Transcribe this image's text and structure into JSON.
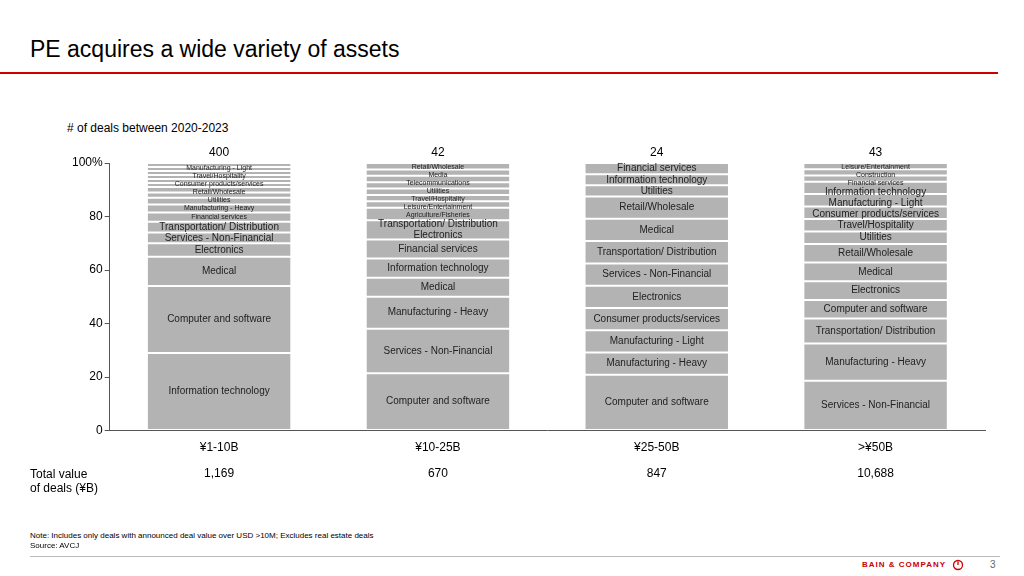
{
  "chart_data": {
    "type": "bar",
    "title": "PE acquires a wide variety of assets",
    "y_label": "# of deals between 2020-2023",
    "stacked": true,
    "grid": false,
    "color": "#b3b3b3",
    "ylim": [
      0,
      100
    ],
    "yticks": [
      0,
      20,
      40,
      60,
      80,
      {
        "value": 100,
        "label": "100%"
      }
    ],
    "categories": [
      "¥1-10B",
      "¥10-25B",
      "¥25-50B",
      ">¥50B"
    ],
    "deal_counts": [
      400,
      42,
      24,
      43
    ],
    "total_value_label": "Total value\nof deals (¥B)",
    "total_values": [
      {
        "value": 1169,
        "label": "1,169"
      },
      {
        "value": 670,
        "label": "670"
      },
      {
        "value": 847,
        "label": "847"
      },
      {
        "value": 10688,
        "label": "10,688"
      }
    ],
    "segments": [
      [
        {
          "name": "Information technology",
          "value": 29
        },
        {
          "name": "Computer and software",
          "value": 25
        },
        {
          "name": "Medical",
          "value": 11
        },
        {
          "name": "Electronics",
          "value": 5
        },
        {
          "name": "Services - Non-Financial",
          "value": 4
        },
        {
          "name": "Transportation/ Distribution",
          "value": 4
        },
        {
          "name": "Financial services",
          "value": 3.5
        },
        {
          "name": "Manufacturing - Heavy",
          "value": 3
        },
        {
          "name": "Utilities",
          "value": 2.5
        },
        {
          "name": "Retail/Wholesale",
          "value": 2
        },
        {
          "name": "Consumer products/services",
          "value": 2
        },
        {
          "name": "Travel/Hospitality",
          "value": 1.5
        },
        {
          "name": "Manufacturing - Light",
          "value": 1.5
        },
        {
          "name": null,
          "value": 1.5
        },
        {
          "name": null,
          "value": 1.5
        },
        {
          "name": null,
          "value": 1.5
        },
        {
          "name": null,
          "value": 1.5
        }
      ],
      [
        {
          "name": "Computer and software",
          "value": 21.43
        },
        {
          "name": "Services - Non-Financial",
          "value": 16.67
        },
        {
          "name": "Manufacturing - Heavy",
          "value": 11.9
        },
        {
          "name": "Medical",
          "value": 7.14
        },
        {
          "name": "Information technology",
          "value": 7.14
        },
        {
          "name": "Financial services",
          "value": 7.14
        },
        {
          "name": "Electronics",
          "value": 7.14
        },
        {
          "name": "Transportation/ Distribution",
          "value": 4.76
        },
        {
          "name": "Agriculture/Fisheries",
          "value": 2.38
        },
        {
          "name": "Leisure/Entertainment",
          "value": 2.38
        },
        {
          "name": "Travel/Hospitality",
          "value": 2.38
        },
        {
          "name": "Utilities",
          "value": 2.38
        },
        {
          "name": "Telecommunications",
          "value": 2.38
        },
        {
          "name": "Media",
          "value": 2.38
        },
        {
          "name": "Retail/Wholesale",
          "value": 2.38
        }
      ],
      [
        {
          "name": "Computer and software",
          "value": 20.83
        },
        {
          "name": "Manufacturing - Heavy",
          "value": 8.33
        },
        {
          "name": "Manufacturing - Light",
          "value": 8.33
        },
        {
          "name": "Consumer products/services",
          "value": 8.33
        },
        {
          "name": "Electronics",
          "value": 8.33
        },
        {
          "name": "Services - Non-Financial",
          "value": 8.33
        },
        {
          "name": "Transportation/ Distribution",
          "value": 8.33
        },
        {
          "name": "Medical",
          "value": 8.33
        },
        {
          "name": "Retail/Wholesale",
          "value": 8.33
        },
        {
          "name": "Utilities",
          "value": 4.17
        },
        {
          "name": "Information technology",
          "value": 4.17
        },
        {
          "name": "Financial services",
          "value": 4.17
        }
      ],
      [
        {
          "name": "Services - Non-Financial",
          "value": 18.6
        },
        {
          "name": "Manufacturing - Heavy",
          "value": 13.95
        },
        {
          "name": "Transportation/ Distribution",
          "value": 9.3
        },
        {
          "name": "Computer and software",
          "value": 6.98
        },
        {
          "name": "Electronics",
          "value": 6.98
        },
        {
          "name": "Medical",
          "value": 6.98
        },
        {
          "name": "Retail/Wholesale",
          "value": 6.98
        },
        {
          "name": "Utilities",
          "value": 4.65
        },
        {
          "name": "Travel/Hospitality",
          "value": 4.65
        },
        {
          "name": "Consumer products/services",
          "value": 4.65
        },
        {
          "name": "Manufacturing - Light",
          "value": 4.65
        },
        {
          "name": "Information technology",
          "value": 4.65
        },
        {
          "name": "Financial services",
          "value": 2.33
        },
        {
          "name": "Construction",
          "value": 2.33
        },
        {
          "name": "Leisure/Entertainment",
          "value": 2.33
        }
      ]
    ]
  },
  "note": "Note: Includes only deals with announced deal value over USD  >10M; Excludes real estate deals",
  "source": "Source: AVCJ",
  "footer": {
    "brand": "BAIN & COMPANY",
    "page": 3
  }
}
